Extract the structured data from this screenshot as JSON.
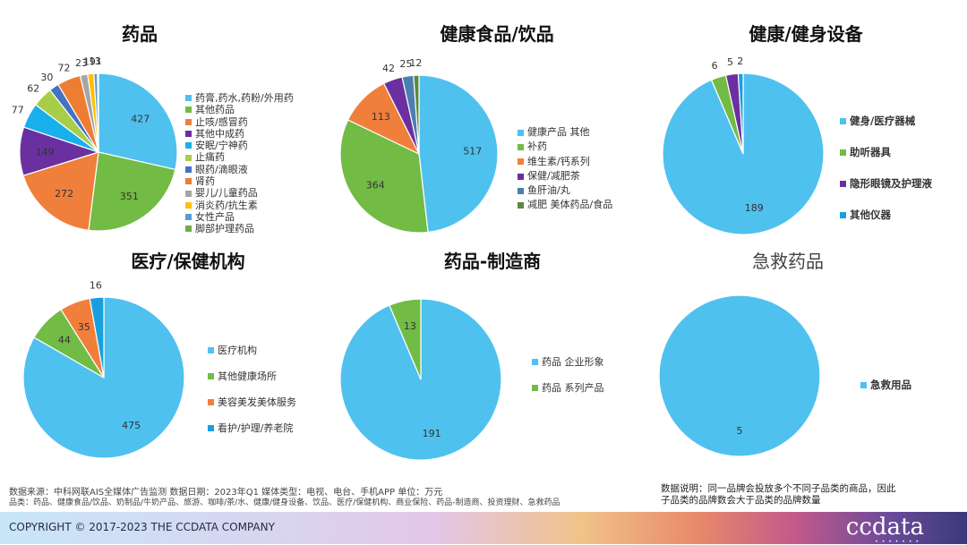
{
  "chart_data": [
    {
      "type": "pie",
      "title": "药品",
      "categories": [
        "药膏,药水,药粉/外用药",
        "其他药品",
        "止咳/感冒药",
        "其他中成药",
        "安眠/宁神药",
        "止痛药",
        "眼药/滴眼液",
        "肾药",
        "婴儿/儿童药品",
        "消炎药/抗生素",
        "女性产品",
        "脚部护理药品"
      ],
      "values": [
        427,
        351,
        272,
        149,
        77,
        62,
        30,
        72,
        23,
        19,
        11,
        3
      ],
      "colors": [
        "#4fc1ef",
        "#72bb45",
        "#f07f3c",
        "#6a30a0",
        "#17b0ea",
        "#a8cd48",
        "#4472c4",
        "#ed7d31",
        "#a5a5a5",
        "#ffc000",
        "#5b9bd5",
        "#70ad47"
      ],
      "legend": "right"
    },
    {
      "type": "pie",
      "title": "健康食品/饮品",
      "categories": [
        "健康产品  其他",
        "补药",
        "维生素/钙系列",
        "保健/减肥茶",
        "鱼肝油/丸",
        "减肥  美体药品/食品"
      ],
      "values": [
        517,
        364,
        113,
        42,
        25,
        12
      ],
      "colors": [
        "#4fc1ef",
        "#72bb45",
        "#f07f3c",
        "#6a30a0",
        "#4a7fb0",
        "#5a8a3a"
      ],
      "legend": "right"
    },
    {
      "type": "pie",
      "title": "健康/健身设备",
      "categories": [
        "健身/医疗器械",
        "助听器具",
        "隐形眼镜及护理液",
        "其他仪器"
      ],
      "values": [
        189,
        6,
        5,
        2
      ],
      "colors": [
        "#4fc1ef",
        "#72bb45",
        "#6a30a0",
        "#17a0e0"
      ],
      "legend": "right"
    },
    {
      "type": "pie",
      "title": "医疗/保健机构",
      "categories": [
        "医疗机构",
        "其他健康场所",
        "美容美发美体服务",
        "看护/护理/养老院"
      ],
      "values": [
        475,
        44,
        35,
        16
      ],
      "colors": [
        "#4fc1ef",
        "#72bb45",
        "#f07f3c",
        "#17a0e0"
      ],
      "legend": "right"
    },
    {
      "type": "pie",
      "title": "药品-制造商",
      "categories": [
        "药品  企业形象",
        "药品  系列产品"
      ],
      "values": [
        191,
        13
      ],
      "colors": [
        "#4fc1ef",
        "#72bb45"
      ],
      "legend": "right"
    },
    {
      "type": "pie",
      "title": "急救药品",
      "categories": [
        "急救用品"
      ],
      "values": [
        5
      ],
      "colors": [
        "#4fc1ef"
      ],
      "legend": "right"
    }
  ],
  "footer": {
    "source": "数据来源：中科网联AIS全媒体广告监测  数据日期：2023年Q1 媒体类型：电视、电台、手机APP 单位：万元",
    "categories": "品类：药品、健康食品/饮品、奶制品/牛奶产品、旅游、咖啡/茶/水、健康/健身设备、饮品、医疗/保健机构、商业保险、药品-制造商、投资理财、急救药品",
    "note_line1": "数据说明：同一品牌会投放多个不同子品类的商品，因此",
    "note_line2": "子品类的品牌数会大于品类的品牌数量",
    "copyright": "COPYRIGHT © 2017-2023 THE CCDATA COMPANY",
    "logo": "ccdata"
  }
}
